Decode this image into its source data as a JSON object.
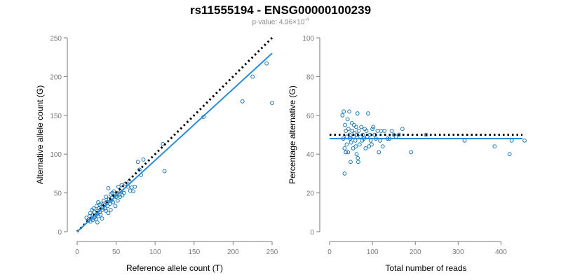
{
  "title": "rs11555194 - ENSG00000100239",
  "subtitle": {
    "prefix": "p-value: 4.96×10",
    "exponent": "-4"
  },
  "colors": {
    "points": "#1f77b4",
    "fit": "#2a8bd8",
    "reference_line": "#000000",
    "axes": "#7a7a7a"
  },
  "chart_data": [
    {
      "type": "scatter",
      "title": "",
      "xlabel": "Reference allele count (T)",
      "ylabel": "Alternative allele count (G)",
      "xlim": [
        0,
        250
      ],
      "ylim": [
        0,
        250
      ],
      "xticks": [
        0,
        50,
        100,
        150,
        200,
        250
      ],
      "yticks": [
        0,
        50,
        100,
        150,
        200,
        250
      ],
      "grid": false,
      "reference_line": {
        "style": "dotted",
        "from": [
          0,
          0
        ],
        "to": [
          250,
          250
        ]
      },
      "fit_line": {
        "from": [
          0,
          0
        ],
        "to": [
          250,
          230
        ]
      },
      "points": [
        [
          12,
          18
        ],
        [
          14,
          14
        ],
        [
          15,
          16
        ],
        [
          16,
          20
        ],
        [
          17,
          24
        ],
        [
          17,
          13
        ],
        [
          18,
          17
        ],
        [
          19,
          28
        ],
        [
          20,
          22
        ],
        [
          20,
          15
        ],
        [
          21,
          30
        ],
        [
          22,
          25
        ],
        [
          22,
          18
        ],
        [
          23,
          20
        ],
        [
          24,
          16
        ],
        [
          25,
          33
        ],
        [
          25,
          22
        ],
        [
          26,
          27
        ],
        [
          26,
          12
        ],
        [
          27,
          20
        ],
        [
          27,
          38
        ],
        [
          28,
          30
        ],
        [
          29,
          35
        ],
        [
          29,
          25
        ],
        [
          30,
          22
        ],
        [
          31,
          36
        ],
        [
          32,
          28
        ],
        [
          32,
          17
        ],
        [
          33,
          31
        ],
        [
          34,
          40
        ],
        [
          35,
          34
        ],
        [
          36,
          30
        ],
        [
          37,
          45
        ],
        [
          37,
          27
        ],
        [
          38,
          38
        ],
        [
          39,
          33
        ],
        [
          40,
          56
        ],
        [
          40,
          24
        ],
        [
          41,
          42
        ],
        [
          42,
          36
        ],
        [
          43,
          48
        ],
        [
          43,
          28
        ],
        [
          44,
          40
        ],
        [
          45,
          50
        ],
        [
          45,
          44
        ],
        [
          46,
          38
        ],
        [
          47,
          52
        ],
        [
          48,
          46
        ],
        [
          49,
          33
        ],
        [
          50,
          45
        ],
        [
          51,
          50
        ],
        [
          52,
          40
        ],
        [
          53,
          58
        ],
        [
          54,
          48
        ],
        [
          55,
          45
        ],
        [
          56,
          52
        ],
        [
          57,
          60
        ],
        [
          58,
          47
        ],
        [
          60,
          50
        ],
        [
          62,
          62
        ],
        [
          65,
          58
        ],
        [
          67,
          65
        ],
        [
          68,
          53
        ],
        [
          70,
          57
        ],
        [
          72,
          52
        ],
        [
          74,
          58
        ],
        [
          78,
          90
        ],
        [
          80,
          80
        ],
        [
          82,
          73
        ],
        [
          85,
          93
        ],
        [
          110,
          113
        ],
        [
          112,
          78
        ],
        [
          162,
          148
        ],
        [
          212,
          168
        ],
        [
          225,
          200
        ],
        [
          243,
          217
        ],
        [
          250,
          166
        ]
      ]
    },
    {
      "type": "scatter",
      "title": "",
      "xlabel": "Total number of reads",
      "ylabel": "Percentage alternative (G)",
      "xlim": [
        0,
        450
      ],
      "ylim": [
        0,
        100
      ],
      "xticks": [
        0,
        100,
        200,
        300,
        400
      ],
      "yticks": [
        0,
        20,
        40,
        60,
        80,
        100
      ],
      "grid": false,
      "reference_line": {
        "style": "dotted",
        "from": [
          0,
          50
        ],
        "to": [
          450,
          50
        ]
      },
      "fit_line": {
        "from": [
          0,
          48
        ],
        "to": [
          450,
          48
        ]
      },
      "points": [
        [
          30,
          60
        ],
        [
          32,
          48
        ],
        [
          33,
          62
        ],
        [
          35,
          43
        ],
        [
          35,
          30
        ],
        [
          36,
          55
        ],
        [
          38,
          41
        ],
        [
          38,
          52
        ],
        [
          40,
          49
        ],
        [
          40,
          45
        ],
        [
          42,
          58
        ],
        [
          43,
          41
        ],
        [
          44,
          53
        ],
        [
          46,
          62
        ],
        [
          47,
          50
        ],
        [
          48,
          48
        ],
        [
          49,
          36
        ],
        [
          50,
          46
        ],
        [
          52,
          56
        ],
        [
          53,
          52
        ],
        [
          55,
          43
        ],
        [
          56,
          49
        ],
        [
          57,
          55
        ],
        [
          58,
          51
        ],
        [
          60,
          47
        ],
        [
          61,
          44
        ],
        [
          62,
          54
        ],
        [
          63,
          40
        ],
        [
          64,
          50
        ],
        [
          65,
          61
        ],
        [
          66,
          38
        ],
        [
          67,
          36
        ],
        [
          68,
          52
        ],
        [
          70,
          45
        ],
        [
          72,
          49
        ],
        [
          74,
          54
        ],
        [
          76,
          47
        ],
        [
          78,
          50
        ],
        [
          80,
          48
        ],
        [
          82,
          53
        ],
        [
          84,
          43
        ],
        [
          86,
          52
        ],
        [
          88,
          49
        ],
        [
          90,
          61
        ],
        [
          92,
          44
        ],
        [
          94,
          50
        ],
        [
          96,
          47
        ],
        [
          98,
          45
        ],
        [
          100,
          53
        ],
        [
          102,
          54
        ],
        [
          105,
          50
        ],
        [
          108,
          48
        ],
        [
          112,
          52
        ],
        [
          115,
          41
        ],
        [
          118,
          47
        ],
        [
          120,
          52
        ],
        [
          124,
          44
        ],
        [
          128,
          52
        ],
        [
          135,
          48
        ],
        [
          140,
          48
        ],
        [
          145,
          52
        ],
        [
          150,
          50
        ],
        [
          155,
          49
        ],
        [
          162,
          50
        ],
        [
          170,
          53
        ],
        [
          190,
          41
        ],
        [
          225,
          50
        ],
        [
          315,
          47
        ],
        [
          385,
          44
        ],
        [
          420,
          40
        ],
        [
          425,
          47
        ],
        [
          455,
          47
        ]
      ]
    }
  ]
}
